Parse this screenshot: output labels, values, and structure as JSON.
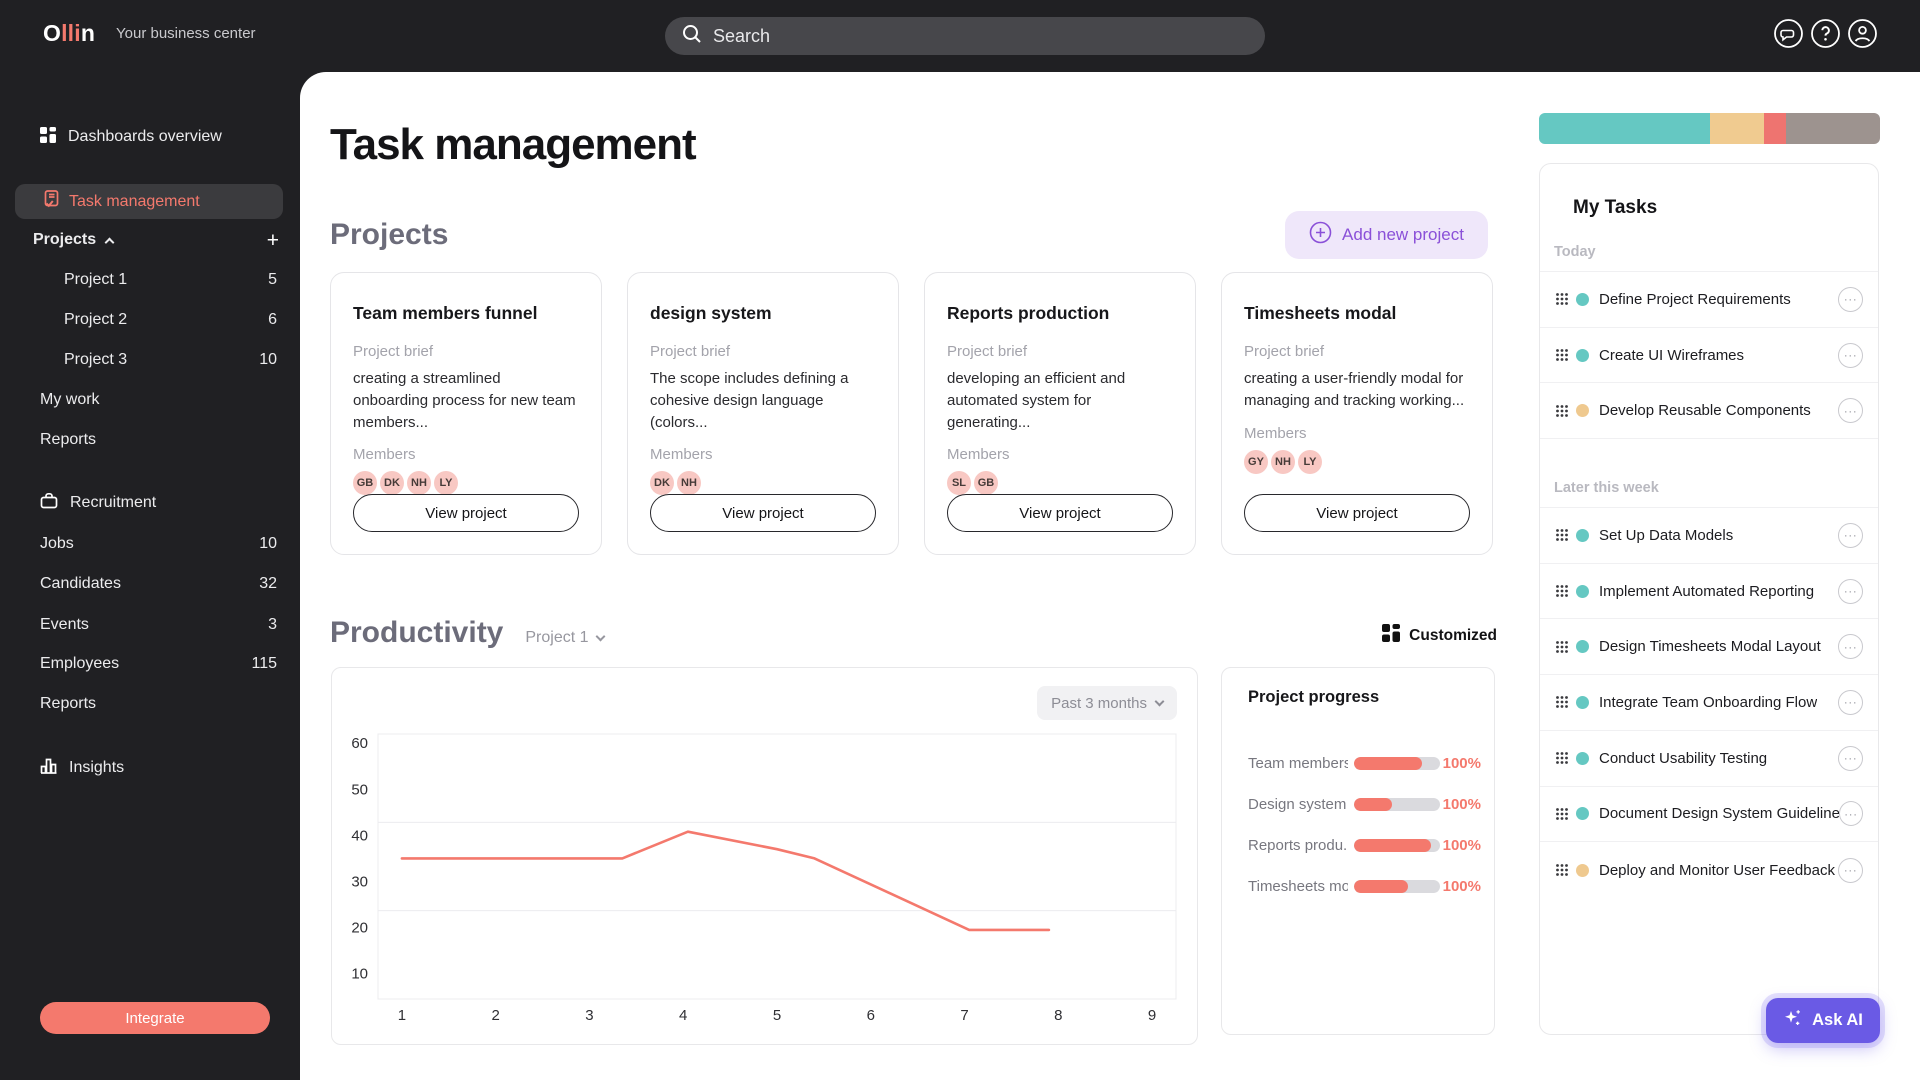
{
  "glyphs": {
    "plus": "+",
    "more": "···"
  },
  "topbar": {
    "logo_part1": "O",
    "logo_part2": "lli",
    "logo_part3": "n",
    "tagline": "Your business center",
    "search_placeholder": "Search"
  },
  "sidebar": {
    "items": {
      "dashboards": "Dashboards overview",
      "task_management": "Task management",
      "projects_header": "Projects",
      "my_work": "My work",
      "reports": "Reports",
      "recruitment": "Recruitment",
      "insights": "Insights"
    },
    "projects": [
      {
        "label": "Project 1",
        "count": "5"
      },
      {
        "label": "Project 2",
        "count": "6"
      },
      {
        "label": "Project 3",
        "count": "10"
      }
    ],
    "recruitment_items": [
      {
        "label": "Jobs",
        "count": "10"
      },
      {
        "label": "Candidates",
        "count": "32"
      },
      {
        "label": "Events",
        "count": "3"
      },
      {
        "label": "Employees",
        "count": "115"
      },
      {
        "label": "Reports",
        "count": ""
      }
    ],
    "integrate_button": "Integrate"
  },
  "main": {
    "page_title": "Task management",
    "projects": {
      "heading": "Projects",
      "add_button": "Add new project",
      "cards": [
        {
          "title": "Team members funnel",
          "brief_label": "Project brief",
          "brief": "creating a streamlined onboarding process for new team members...",
          "members_label": "Members",
          "members": [
            "GB",
            "DK",
            "NH",
            "LY"
          ],
          "button": "View project"
        },
        {
          "title": "design system",
          "brief_label": "Project brief",
          "brief": "The scope includes defining a cohesive design language (colors...",
          "members_label": "Members",
          "members": [
            "DK",
            "NH"
          ],
          "button": "View project"
        },
        {
          "title": "Reports production",
          "brief_label": "Project brief",
          "brief": "developing an efficient and automated system for generating...",
          "members_label": "Members",
          "members": [
            "SL",
            "GB"
          ],
          "button": "View project"
        },
        {
          "title": "Timesheets modal",
          "brief_label": "Project brief",
          "brief": "creating a user-friendly modal for managing and tracking working...",
          "members_label": "Members",
          "members": [
            "GY",
            "NH",
            "LY"
          ],
          "button": "View project"
        }
      ]
    },
    "productivity": {
      "heading": "Productivity",
      "project_filter": "Project 1",
      "customized": "Customized",
      "range_filter": "Past 3 months"
    }
  },
  "chart_data": {
    "type": "line",
    "title": "Productivity",
    "series": [
      {
        "name": "Project 1",
        "x": [
          1,
          3.35,
          4.05,
          5,
          5.4,
          7.05,
          7.9
        ],
        "y": [
          35,
          35,
          40.8,
          37,
          35,
          19.5,
          19.5
        ]
      }
    ],
    "x_ticks": [
      1,
      2,
      3,
      4,
      5,
      6,
      7,
      8,
      9
    ],
    "y_ticks": [
      60,
      50,
      40,
      30,
      20,
      10
    ],
    "xlim": [
      0.745,
      9.255
    ],
    "ylim": [
      4.5,
      62
    ],
    "line_color": "#F4796D",
    "grid": "horizontal thirds",
    "legend": "none",
    "range_label": "Past 3 months"
  },
  "progress_panel": {
    "title": "Project progress",
    "fill_color": "#F4796D",
    "track_color": "#DADADE",
    "rows": [
      {
        "label": "Team members...",
        "pct": "100%",
        "fill": "79%"
      },
      {
        "label": "Design system",
        "pct": "100%",
        "fill": "44%"
      },
      {
        "label": "Reports produ...",
        "pct": "100%",
        "fill": "90%"
      },
      {
        "label": "Timesheets mo...",
        "pct": "100%",
        "fill": "63%"
      }
    ]
  },
  "tasks_panel": {
    "title": "My Tasks",
    "color_bar": [
      {
        "color": "#65C8C2",
        "width": "50%"
      },
      {
        "color": "#F0CB90",
        "width": "16%"
      },
      {
        "color": "#EE7470",
        "width": "6.5%"
      },
      {
        "color": "#9D938F",
        "width": "27.5%"
      }
    ],
    "sections": [
      {
        "label": "Today",
        "tasks": [
          {
            "label": "Define Project Requirements",
            "dot": "#65C8C2"
          },
          {
            "label": "Create UI Wireframes",
            "dot": "#65C8C2"
          },
          {
            "label": "Develop Reusable Components",
            "dot": "#EFC98F"
          }
        ]
      },
      {
        "label": "Later this week",
        "tasks": [
          {
            "label": "Set Up Data Models",
            "dot": "#65C8C2"
          },
          {
            "label": "Implement Automated Reporting",
            "dot": "#65C8C2"
          },
          {
            "label": "Design Timesheets Modal Layout",
            "dot": "#65C8C2"
          },
          {
            "label": "Integrate Team Onboarding Flow",
            "dot": "#65C8C2"
          },
          {
            "label": "Conduct Usability Testing",
            "dot": "#65C8C2"
          },
          {
            "label": "Document Design System Guidelines",
            "dot": "#65C8C2"
          },
          {
            "label": "Deploy and Monitor User Feedback",
            "dot": "#EFC98F"
          }
        ]
      }
    ]
  },
  "ask_ai_button": "Ask AI",
  "colors": {
    "accent_coral": "#F4796D",
    "accent_purple": "#6A5AE5",
    "lavender_bg": "#EFE7FA"
  }
}
